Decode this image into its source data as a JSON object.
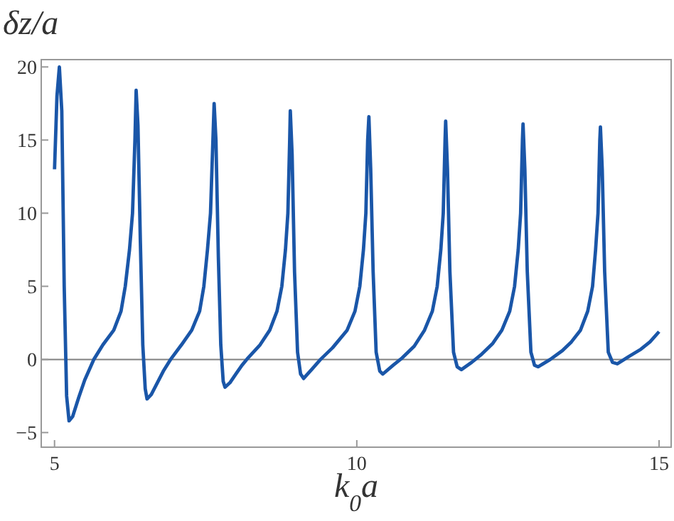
{
  "chart_data": {
    "type": "line",
    "xlabel": "k$_{0}$a",
    "ylabel": "δz/a",
    "xlim": [
      4.78,
      15.2
    ],
    "ylim": [
      -6,
      20.5
    ],
    "xticks": [
      5,
      10,
      15
    ],
    "yticks": [
      -5,
      0,
      5,
      10,
      15,
      20
    ],
    "grid": false,
    "marker": "none",
    "line_style": "solid",
    "ref_lines": [
      {
        "axis": "y",
        "value": 0,
        "color": "#808080"
      }
    ],
    "series": [
      {
        "color": "#1a56a8",
        "x": [
          5.0,
          5.04,
          5.08,
          5.12,
          5.16,
          5.2,
          5.24,
          5.3,
          5.4,
          5.5,
          5.65,
          5.8,
          5.98,
          6.1,
          6.17,
          6.24,
          6.29,
          6.33,
          6.35,
          6.38,
          6.42,
          6.46,
          6.5,
          6.53,
          6.6,
          6.7,
          6.8,
          6.92,
          7.1,
          7.27,
          7.4,
          7.47,
          7.53,
          7.58,
          7.62,
          7.64,
          7.67,
          7.71,
          7.75,
          7.79,
          7.82,
          7.9,
          8.0,
          8.1,
          8.2,
          8.4,
          8.56,
          8.68,
          8.76,
          8.82,
          8.86,
          8.89,
          8.9,
          8.93,
          8.97,
          9.02,
          9.07,
          9.12,
          9.25,
          9.4,
          9.6,
          9.84,
          9.97,
          10.05,
          10.11,
          10.15,
          10.18,
          10.2,
          10.23,
          10.27,
          10.32,
          10.38,
          10.43,
          10.6,
          10.75,
          10.95,
          11.12,
          11.25,
          11.33,
          11.39,
          11.43,
          11.46,
          11.47,
          11.5,
          11.54,
          11.6,
          11.66,
          11.73,
          11.9,
          12.05,
          12.25,
          12.4,
          12.53,
          12.61,
          12.67,
          12.71,
          12.74,
          12.75,
          12.78,
          12.82,
          12.88,
          12.94,
          13.0,
          13.2,
          13.4,
          13.55,
          13.7,
          13.82,
          13.9,
          13.95,
          13.99,
          14.02,
          14.03,
          14.06,
          14.1,
          14.16,
          14.23,
          14.31,
          14.5,
          14.7,
          14.85,
          15.0
        ],
        "values": [
          13,
          18,
          20,
          17,
          5,
          -2.5,
          -4.2,
          -3.9,
          -2.6,
          -1.4,
          0,
          1,
          2,
          3.3,
          5,
          7.5,
          10,
          15,
          18.4,
          16,
          8,
          1,
          -2,
          -2.7,
          -2.4,
          -1.6,
          -0.8,
          0,
          1,
          2,
          3.3,
          5,
          7.5,
          10,
          15,
          17.5,
          15,
          7,
          1,
          -1.5,
          -1.9,
          -1.6,
          -1.0,
          -0.4,
          0.1,
          1,
          2,
          3.3,
          5,
          7.5,
          10,
          15,
          17,
          14,
          6,
          0.5,
          -1,
          -1.3,
          -0.7,
          0,
          0.8,
          2,
          3.3,
          5,
          7.5,
          10,
          15,
          16.6,
          13,
          6,
          0.5,
          -0.8,
          -1.0,
          -0.4,
          0.1,
          0.9,
          2,
          3.3,
          5,
          7.5,
          10,
          15,
          16.3,
          13,
          6,
          0.5,
          -0.5,
          -0.7,
          -0.2,
          0.3,
          1.1,
          2,
          3.3,
          5,
          7.5,
          10,
          15,
          16.1,
          13,
          6,
          0.5,
          -0.4,
          -0.5,
          0,
          0.6,
          1.2,
          2,
          3.3,
          5,
          7.5,
          10,
          15,
          15.9,
          13,
          6,
          0.5,
          -0.2,
          -0.3,
          0.2,
          0.7,
          1.2,
          1.9
        ]
      }
    ]
  }
}
